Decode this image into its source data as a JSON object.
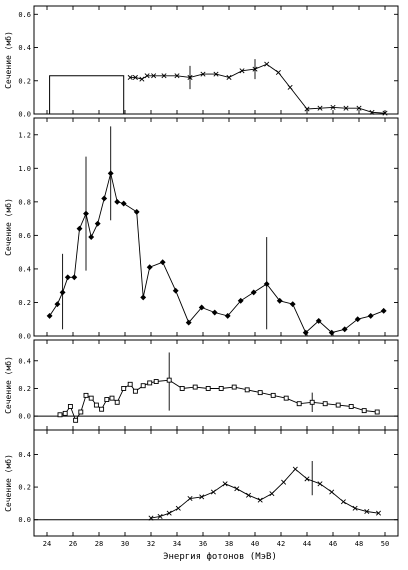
{
  "chart_data": [
    {
      "type": "line",
      "ylabel": "Сечение (мб)",
      "ylim": [
        0,
        0.65
      ],
      "yticks": [
        "0.0",
        "0.2",
        "0.4",
        "0.6"
      ],
      "yticks_values": [
        0,
        0.2,
        0.4,
        0.6
      ],
      "marker": "x",
      "rectangle": {
        "x0": 24.2,
        "x1": 29.9,
        "y": 0.23
      },
      "x": [
        30.4,
        30.8,
        31.3,
        31.7,
        32.2,
        33.0,
        34.0,
        35.0,
        36.0,
        37.0,
        38.0,
        39.0,
        40.0,
        40.9,
        41.8,
        42.7,
        44.0,
        45.0,
        46.0,
        47.0,
        48.0,
        49.0,
        50.0
      ],
      "values": [
        0.22,
        0.22,
        0.21,
        0.23,
        0.23,
        0.23,
        0.23,
        0.22,
        0.24,
        0.24,
        0.22,
        0.26,
        0.27,
        0.3,
        0.25,
        0.16,
        0.03,
        0.035,
        0.04,
        0.035,
        0.035,
        0.01,
        0.005
      ],
      "error_bars": [
        {
          "x": 35.0,
          "low": 0.15,
          "high": 0.29
        },
        {
          "x": 40.0,
          "low": 0.21,
          "high": 0.33
        }
      ]
    },
    {
      "type": "line",
      "ylabel": "Сечение (мб)",
      "ylim": [
        0,
        1.3
      ],
      "yticks": [
        "0.0",
        "0.2",
        "0.4",
        "0.6",
        "0.8",
        "1.0",
        "1.2"
      ],
      "yticks_values": [
        0,
        0.2,
        0.4,
        0.6,
        0.8,
        1.0,
        1.2
      ],
      "marker": "diamond",
      "x": [
        24.2,
        24.8,
        25.2,
        25.6,
        26.1,
        26.5,
        27.0,
        27.4,
        27.9,
        28.4,
        28.9,
        29.4,
        29.9,
        30.9,
        31.4,
        31.9,
        32.9,
        33.9,
        34.9,
        35.9,
        36.9,
        37.9,
        38.9,
        39.9,
        40.9,
        41.9,
        42.9,
        43.9,
        44.9,
        45.9,
        46.9,
        47.9,
        48.9,
        49.9
      ],
      "values": [
        0.12,
        0.19,
        0.26,
        0.35,
        0.35,
        0.64,
        0.73,
        0.59,
        0.67,
        0.82,
        0.97,
        0.8,
        0.79,
        0.74,
        0.23,
        0.41,
        0.44,
        0.27,
        0.08,
        0.17,
        0.14,
        0.12,
        0.21,
        0.26,
        0.31,
        0.21,
        0.19,
        0.02,
        0.09,
        0.02,
        0.04,
        0.1,
        0.12,
        0.15
      ],
      "error_bars": [
        {
          "x": 25.2,
          "low": 0.04,
          "high": 0.49
        },
        {
          "x": 27.0,
          "low": 0.39,
          "high": 1.07
        },
        {
          "x": 28.9,
          "low": 0.69,
          "high": 1.25
        },
        {
          "x": 40.9,
          "low": 0.04,
          "high": 0.59
        }
      ]
    },
    {
      "type": "line",
      "ylabel": "Сечение (мб)",
      "ylim": [
        -0.1,
        0.55
      ],
      "yticks": [
        "0.0",
        "0.2",
        "0.4"
      ],
      "yticks_values": [
        0,
        0.2,
        0.4
      ],
      "marker": "square",
      "x": [
        25.0,
        25.4,
        25.8,
        26.2,
        26.6,
        27.0,
        27.4,
        27.8,
        28.2,
        28.6,
        29.0,
        29.4,
        29.9,
        30.4,
        30.8,
        31.4,
        31.9,
        32.4,
        33.4,
        34.4,
        35.4,
        36.4,
        37.4,
        38.4,
        39.4,
        40.4,
        41.4,
        42.4,
        43.4,
        44.4,
        45.4,
        46.4,
        47.4,
        48.4,
        49.4
      ],
      "values": [
        0.01,
        0.02,
        0.07,
        -0.03,
        0.03,
        0.15,
        0.13,
        0.08,
        0.05,
        0.12,
        0.13,
        0.1,
        0.2,
        0.23,
        0.18,
        0.22,
        0.24,
        0.25,
        0.26,
        0.2,
        0.21,
        0.2,
        0.2,
        0.21,
        0.19,
        0.17,
        0.15,
        0.13,
        0.09,
        0.1,
        0.09,
        0.08,
        0.07,
        0.04,
        0.03
      ],
      "error_bars": [
        {
          "x": 33.4,
          "low": 0.04,
          "high": 0.46
        },
        {
          "x": 44.4,
          "low": 0.03,
          "high": 0.17
        }
      ]
    },
    {
      "type": "line",
      "ylabel": "Сечение (мб)",
      "xlabel": "Энергия фотонов (МэВ)",
      "ylim": [
        -0.1,
        0.55
      ],
      "yticks": [
        "0.0",
        "0.2",
        "0.4"
      ],
      "yticks_values": [
        0,
        0.2,
        0.4
      ],
      "xlim": [
        23,
        51
      ],
      "xticks": [
        "24",
        "26",
        "28",
        "30",
        "32",
        "34",
        "36",
        "38",
        "40",
        "42",
        "44",
        "46",
        "48",
        "50"
      ],
      "xticks_values": [
        24,
        26,
        28,
        30,
        32,
        34,
        36,
        38,
        40,
        42,
        44,
        46,
        48,
        50
      ],
      "marker": "x",
      "x": [
        32.0,
        32.7,
        33.4,
        34.1,
        35.0,
        35.9,
        36.8,
        37.7,
        38.6,
        39.5,
        40.4,
        41.3,
        42.2,
        43.1,
        44.0,
        45.0,
        45.9,
        46.8,
        47.7,
        48.6,
        49.5
      ],
      "values": [
        0.01,
        0.02,
        0.04,
        0.07,
        0.13,
        0.14,
        0.17,
        0.22,
        0.19,
        0.15,
        0.12,
        0.16,
        0.23,
        0.31,
        0.25,
        0.22,
        0.17,
        0.11,
        0.07,
        0.05,
        0.04
      ],
      "error_bars": [
        {
          "x": 44.4,
          "low": 0.15,
          "high": 0.36
        }
      ]
    }
  ]
}
